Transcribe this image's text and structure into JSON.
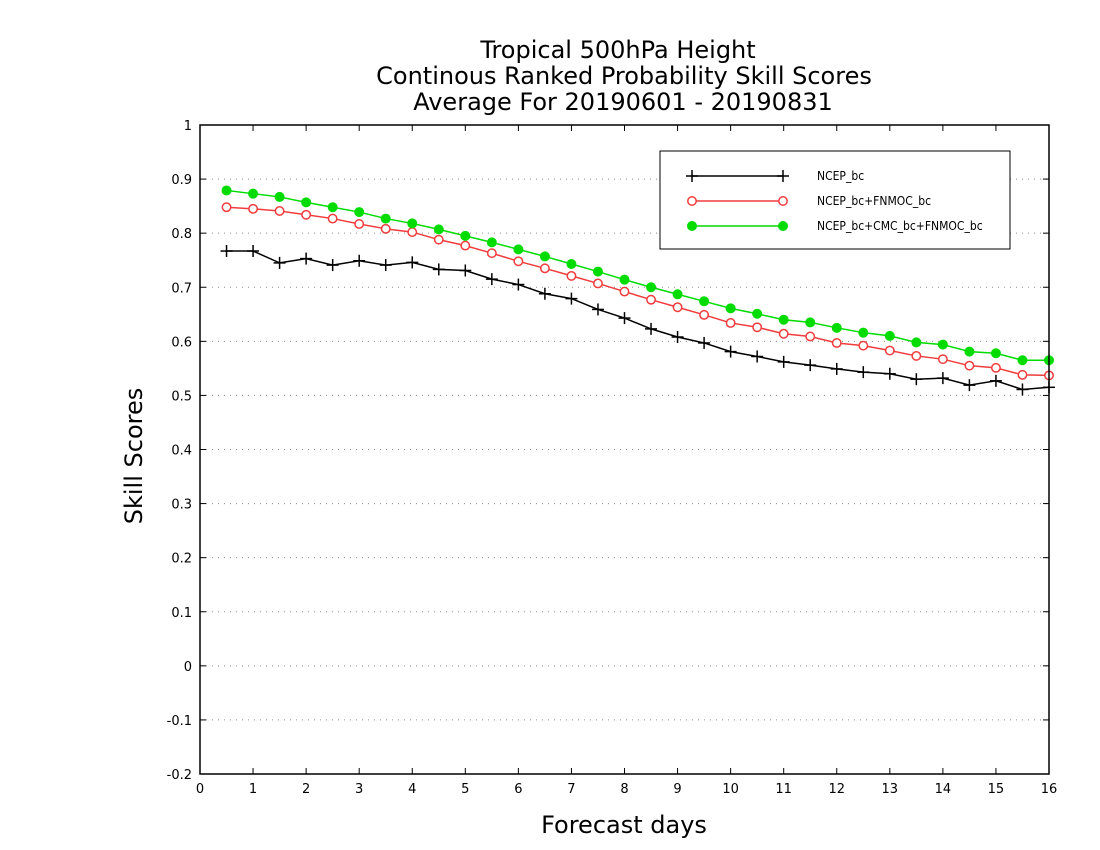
{
  "chart_data": {
    "type": "line",
    "title_lines": [
      "Tropical 500hPa Height",
      "Continous Ranked Probability Skill Scores",
      "Average For 20190601 - 20190831"
    ],
    "xlabel": "Forecast days",
    "ylabel": "Skill Scores",
    "xlim": [
      0,
      16
    ],
    "ylim": [
      -0.2,
      1
    ],
    "x_ticks": [
      0,
      1,
      2,
      3,
      4,
      5,
      6,
      7,
      8,
      9,
      10,
      11,
      12,
      13,
      14,
      15,
      16
    ],
    "y_ticks": [
      -0.2,
      -0.1,
      0,
      0.1,
      0.2,
      0.3,
      0.4,
      0.5,
      0.6,
      0.7,
      0.8,
      0.9,
      1
    ],
    "y_tick_labels": [
      "-0.2",
      "-0.1",
      "0",
      "0.1",
      "0.2",
      "0.3",
      "0.4",
      "0.5",
      "0.6",
      "0.7",
      "0.8",
      "0.9",
      "1"
    ],
    "grid": "horizontal dotted",
    "legend_position": "top-right",
    "x": [
      0.5,
      1,
      1.5,
      2,
      2.5,
      3,
      3.5,
      4,
      4.5,
      5,
      5.5,
      6,
      6.5,
      7,
      7.5,
      8,
      8.5,
      9,
      9.5,
      10,
      10.5,
      11,
      11.5,
      12,
      12.5,
      13,
      13.5,
      14,
      14.5,
      15,
      15.5,
      16
    ],
    "series": [
      {
        "name": "NCEP_bc",
        "color": "#000000",
        "marker": "plus",
        "values": [
          0.767,
          0.767,
          0.745,
          0.753,
          0.741,
          0.749,
          0.741,
          0.746,
          0.733,
          0.731,
          0.715,
          0.705,
          0.688,
          0.679,
          0.659,
          0.643,
          0.623,
          0.608,
          0.597,
          0.581,
          0.572,
          0.562,
          0.556,
          0.549,
          0.543,
          0.54,
          0.53,
          0.532,
          0.519,
          0.527,
          0.511,
          0.515
        ]
      },
      {
        "name": "NCEP_bc+FNMOC_bc",
        "color": "#f03c3c",
        "marker": "open-circle",
        "values": [
          0.848,
          0.845,
          0.841,
          0.834,
          0.827,
          0.817,
          0.808,
          0.802,
          0.788,
          0.777,
          0.763,
          0.748,
          0.735,
          0.721,
          0.707,
          0.692,
          0.677,
          0.663,
          0.649,
          0.634,
          0.626,
          0.614,
          0.609,
          0.597,
          0.592,
          0.583,
          0.573,
          0.567,
          0.555,
          0.551,
          0.538,
          0.537
        ]
      },
      {
        "name": "NCEP_bc+CMC_bc+FNMOC_bc",
        "color": "#00dc00",
        "marker": "filled-circle",
        "values": [
          0.879,
          0.873,
          0.867,
          0.857,
          0.848,
          0.839,
          0.827,
          0.818,
          0.807,
          0.795,
          0.783,
          0.77,
          0.757,
          0.743,
          0.729,
          0.714,
          0.7,
          0.687,
          0.674,
          0.661,
          0.651,
          0.64,
          0.635,
          0.625,
          0.616,
          0.61,
          0.598,
          0.594,
          0.581,
          0.578,
          0.565,
          0.565
        ]
      }
    ]
  }
}
